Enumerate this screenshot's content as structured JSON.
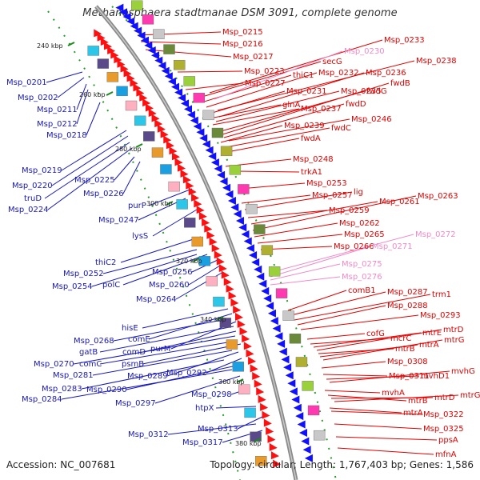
{
  "title": "Methanosphaera stadtmanae DSM 3091, complete genome",
  "footer": {
    "accession": "Accession: NC_007681",
    "info": "Topology: circular; Length: 1,767,403 bp; Genes: 1,586"
  },
  "colors": {
    "reverse_label": "#1818b8",
    "forward_label": "#e00000",
    "rna_label": "#f08ac8",
    "backbone": "#909090",
    "forward_arrow": "#ff1010",
    "reverse_arrow": "#1010ff"
  },
  "kbp_ticks": [
    "240 kbp",
    "260 kbp",
    "280 kbp",
    "300 kbp",
    "320 kbp",
    "340 kbp",
    "360 kbp",
    "380 kbp"
  ],
  "left_labels": [
    "Msp_0201",
    "Msp_0202",
    "Msp_0211",
    "Msp_0212",
    "Msp_0218",
    "Msp_0219",
    "Msp_0220",
    "truD",
    "Msp_0224",
    "Msp_0225",
    "Msp_0226",
    "purP",
    "Msp_0247",
    "lysS",
    "thiC2",
    "Msp_0252",
    "Msp_0254",
    "polC",
    "Msp_0256",
    "Msp_0260",
    "Msp_0264",
    "hisE",
    "comE",
    "Msp_0268",
    "purM",
    "gatB",
    "comD",
    "Msp_0270",
    "comC",
    "psmB",
    "Msp_0281",
    "Msp_0289",
    "Msp_0292",
    "Msp_0283",
    "Msp_0290",
    "Msp_0284",
    "Msp_0297",
    "Msp_0298",
    "htpX",
    "Msp_0313",
    "Msp_0312",
    "Msp_0317"
  ],
  "right_labels": [
    "Msp_0215",
    "Msp_0216",
    "Msp_0217",
    "Msp_0223",
    "Msp_0227",
    "thiC1",
    "secG",
    "Msp_0232",
    "Msp_0231",
    "glnA",
    "Msp_0237",
    "Msp_0235",
    "Msp_0236",
    "fwdG",
    "fwdB",
    "fwdD",
    "Msp_0239",
    "fwdC",
    "fwdA",
    "Msp_0246",
    "Msp_0248",
    "trkA1",
    "Msp_0253",
    "Msp_0257",
    "lig",
    "Msp_0259",
    "Msp_0261",
    "Msp_0263",
    "Msp_0262",
    "Msp_0265",
    "Msp_0266",
    "comB1",
    "Msp_0287",
    "trm1",
    "Msp_0288",
    "Msp_0293",
    "cofG",
    "mcrC",
    "mtrE",
    "mtrD",
    "mtrB",
    "mtrA",
    "mtrG",
    "Msp_0308",
    "Msp_0311",
    "mvhD1",
    "mvhG",
    "mvhA",
    "mtrB",
    "mtrD",
    "mtrG",
    "mtrA",
    "Msp_0322",
    "Msp_0325",
    "ppsA",
    "mfnA",
    "Msp_0233",
    "Msp_0238"
  ],
  "rna_labels": [
    "Msp_0230",
    "Msp_0272",
    "Msp_0271",
    "Msp_0275",
    "Msp_0276"
  ]
}
